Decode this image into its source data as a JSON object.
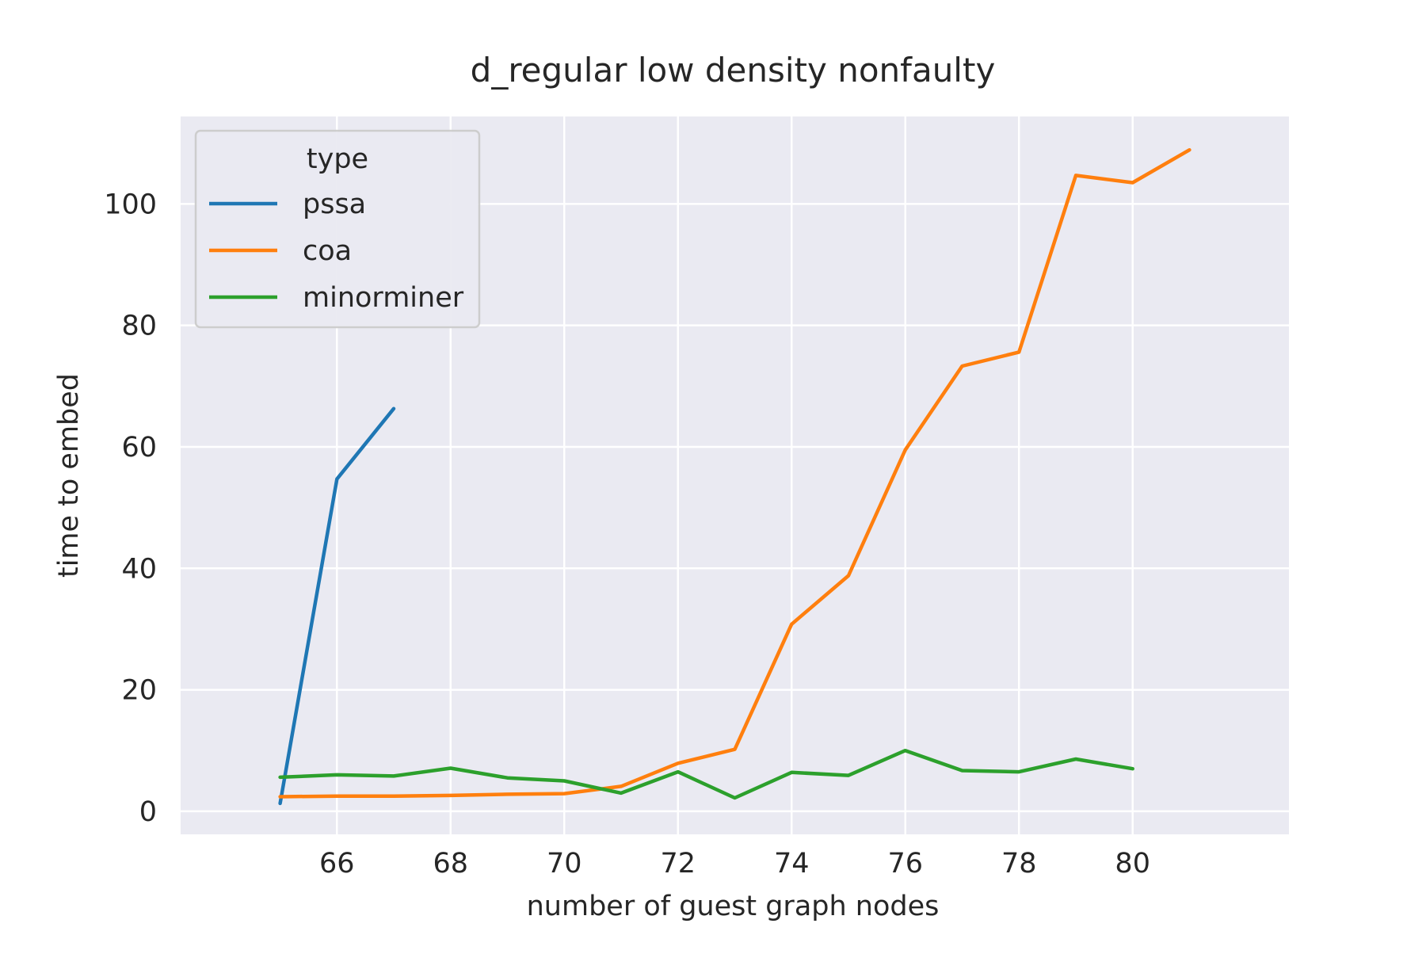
{
  "chart_data": {
    "type": "line",
    "title": "d_regular low density nonfaulty",
    "xlabel": "number of guest graph nodes",
    "ylabel": "time to embed",
    "xlim": [
      63.25,
      82.75
    ],
    "ylim": [
      -3.8,
      114.4
    ],
    "xticks": [
      66,
      68,
      70,
      72,
      74,
      76,
      78,
      80
    ],
    "yticks": [
      0,
      20,
      40,
      60,
      80,
      100
    ],
    "grid": true,
    "background_color": "#eaeaf2",
    "legend": {
      "title": "type",
      "placement": "top-left"
    },
    "series": [
      {
        "name": "pssa",
        "color": "#1f77b4",
        "x": [
          65,
          66,
          67
        ],
        "y": [
          1.3,
          54.7,
          66.3
        ]
      },
      {
        "name": "coa",
        "color": "#ff7f0e",
        "x": [
          65,
          66,
          67,
          68,
          69,
          70,
          71,
          72,
          73,
          74,
          75,
          76,
          77,
          78,
          79,
          80,
          81
        ],
        "y": [
          2.4,
          2.5,
          2.5,
          2.6,
          2.8,
          2.9,
          4.1,
          7.9,
          10.2,
          30.8,
          38.8,
          59.5,
          73.3,
          75.6,
          104.7,
          103.5,
          108.9
        ]
      },
      {
        "name": "minorminer",
        "color": "#2ca02c",
        "x": [
          65,
          66,
          67,
          68,
          69,
          70,
          71,
          72,
          73,
          74,
          75,
          76,
          77,
          78,
          79,
          80
        ],
        "y": [
          5.6,
          6.0,
          5.8,
          7.1,
          5.5,
          5.0,
          3.0,
          6.5,
          2.2,
          6.4,
          5.9,
          10.0,
          6.7,
          6.5,
          8.6,
          7.0
        ]
      }
    ]
  }
}
